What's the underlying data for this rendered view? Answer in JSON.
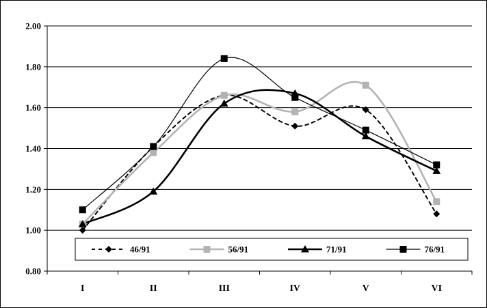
{
  "chart_data": {
    "type": "line",
    "categories": [
      "I",
      "II",
      "III",
      "IV",
      "V",
      "VI"
    ],
    "ylim": [
      0.8,
      2.0
    ],
    "yticks": [
      "0.80",
      "1.00",
      "1.20",
      "1.40",
      "1.60",
      "1.80",
      "2.00"
    ],
    "ytick_values": [
      0.8,
      1.0,
      1.2,
      1.4,
      1.6,
      1.8,
      2.0
    ],
    "grid": true,
    "legend_position": "bottom-inside",
    "series": [
      {
        "name": "46/91",
        "values": [
          1.0,
          1.41,
          1.66,
          1.51,
          1.59,
          1.08
        ],
        "color": "#000000",
        "style": "dashed",
        "marker": "diamond",
        "width": 2
      },
      {
        "name": "56/91",
        "values": [
          1.03,
          1.38,
          1.66,
          1.58,
          1.71,
          1.14
        ],
        "color": "#b3b3b3",
        "style": "solid",
        "marker": "square",
        "width": 2.6
      },
      {
        "name": "71/91",
        "values": [
          1.03,
          1.19,
          1.62,
          1.67,
          1.46,
          1.29
        ],
        "color": "#000000",
        "style": "solid",
        "marker": "triangle",
        "width": 2.6
      },
      {
        "name": "76/91",
        "values": [
          1.1,
          1.41,
          1.84,
          1.65,
          1.49,
          1.32
        ],
        "color": "#000000",
        "style": "solid",
        "marker": "square",
        "width": 1.2
      }
    ]
  }
}
